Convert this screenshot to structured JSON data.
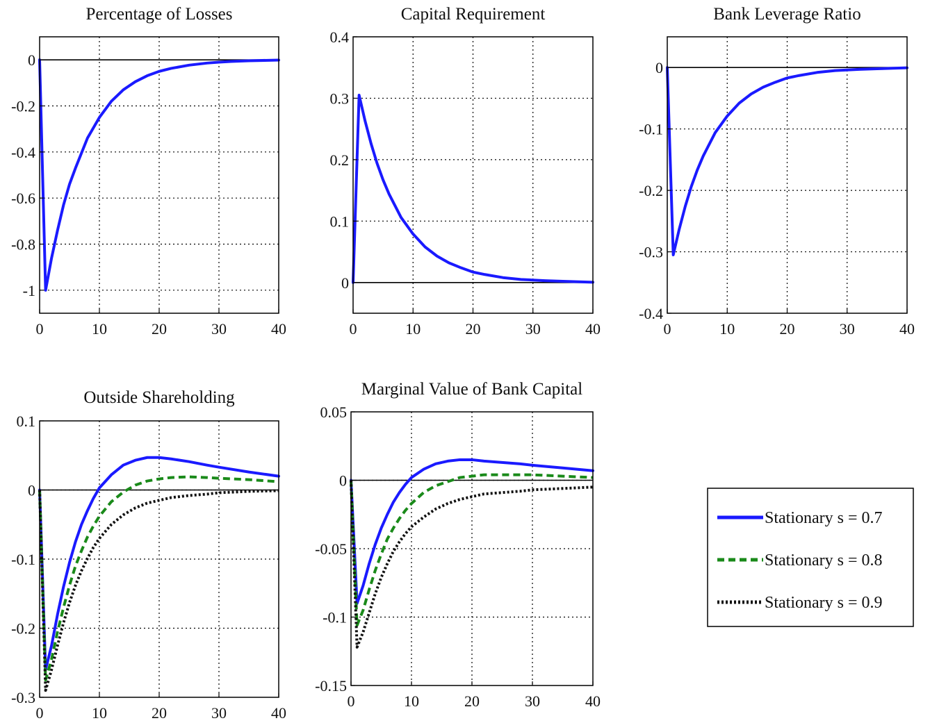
{
  "series_styles": [
    {
      "name": "Stationary s = 0.7",
      "color": "#1a1aff",
      "dash": "none",
      "width": 4
    },
    {
      "name": "Stationary s = 0.8",
      "color": "#1a8a1a",
      "dash": "10 6",
      "width": 4
    },
    {
      "name": "Stationary s = 0.9",
      "color": "#111111",
      "dash": "3 3",
      "width": 4
    }
  ],
  "legend": {
    "placement": "bottom-right",
    "entries": [
      "Stationary s = 0.7",
      "Stationary s = 0.8",
      "Stationary s = 0.9"
    ]
  },
  "chart_data": [
    {
      "type": "line",
      "title": "Percentage of Losses",
      "xlim": [
        0,
        40
      ],
      "ylim": [
        -1.1,
        0.1
      ],
      "xticks": [
        0,
        10,
        20,
        30,
        40
      ],
      "yticks": [
        0,
        -0.2,
        -0.4,
        -0.6,
        -0.8,
        -1
      ],
      "ytick_labels": [
        "0",
        "-0.2",
        "-0.4",
        "-0.6",
        "-0.8",
        "-1"
      ],
      "grid": true,
      "x": [
        0,
        1,
        2,
        3,
        4,
        5,
        6,
        8,
        10,
        12,
        14,
        16,
        18,
        20,
        22,
        25,
        28,
        30,
        32,
        35,
        40
      ],
      "series": [
        {
          "values": [
            0,
            -1.0,
            -0.86,
            -0.74,
            -0.63,
            -0.54,
            -0.47,
            -0.34,
            -0.25,
            -0.18,
            -0.13,
            -0.095,
            -0.069,
            -0.05,
            -0.037,
            -0.023,
            -0.014,
            -0.01,
            -0.007,
            -0.004,
            -0.001
          ]
        }
      ]
    },
    {
      "type": "line",
      "title": "Capital Requirement",
      "xlim": [
        0,
        40
      ],
      "ylim": [
        -0.05,
        0.4
      ],
      "xticks": [
        0,
        10,
        20,
        30,
        40
      ],
      "yticks": [
        0,
        0.1,
        0.2,
        0.3,
        0.4
      ],
      "ytick_labels": [
        "0",
        "0.1",
        "0.2",
        "0.3",
        "0.4"
      ],
      "grid": true,
      "x": [
        0,
        1,
        2,
        3,
        4,
        5,
        6,
        8,
        10,
        12,
        14,
        16,
        18,
        20,
        22,
        25,
        28,
        30,
        32,
        35,
        40
      ],
      "series": [
        {
          "values": [
            0,
            0.305,
            0.263,
            0.226,
            0.194,
            0.167,
            0.144,
            0.106,
            0.079,
            0.058,
            0.043,
            0.032,
            0.024,
            0.017,
            0.013,
            0.008,
            0.005,
            0.004,
            0.003,
            0.002,
            0.0005
          ]
        }
      ]
    },
    {
      "type": "line",
      "title": "Bank Leverage Ratio",
      "xlim": [
        0,
        40
      ],
      "ylim": [
        -0.4,
        0.05
      ],
      "xticks": [
        0,
        10,
        20,
        30,
        40
      ],
      "yticks": [
        0,
        -0.1,
        -0.2,
        -0.3,
        -0.4
      ],
      "ytick_labels": [
        "0",
        "-0.1",
        "-0.2",
        "-0.3",
        "-0.4"
      ],
      "grid": true,
      "x": [
        0,
        1,
        2,
        3,
        4,
        5,
        6,
        8,
        10,
        12,
        14,
        16,
        18,
        20,
        22,
        25,
        28,
        30,
        32,
        35,
        40
      ],
      "series": [
        {
          "values": [
            0,
            -0.305,
            -0.263,
            -0.226,
            -0.194,
            -0.167,
            -0.144,
            -0.106,
            -0.079,
            -0.058,
            -0.043,
            -0.032,
            -0.024,
            -0.017,
            -0.013,
            -0.008,
            -0.005,
            -0.004,
            -0.003,
            -0.002,
            -0.0005
          ]
        }
      ]
    },
    {
      "type": "line",
      "title": "Outside Shareholding",
      "xlim": [
        0,
        40
      ],
      "ylim": [
        -0.3,
        0.1
      ],
      "xticks": [
        0,
        10,
        20,
        30,
        40
      ],
      "yticks": [
        0.1,
        0,
        -0.1,
        -0.2,
        -0.3
      ],
      "ytick_labels": [
        "0.1",
        "0",
        "-0.1",
        "-0.2",
        "-0.3"
      ],
      "grid": true,
      "x": [
        0,
        1,
        2,
        3,
        4,
        5,
        6,
        7,
        8,
        9,
        10,
        12,
        14,
        16,
        18,
        20,
        22,
        25,
        28,
        30,
        35,
        40
      ],
      "series": [
        {
          "values": [
            0,
            -0.26,
            -0.225,
            -0.18,
            -0.14,
            -0.105,
            -0.075,
            -0.05,
            -0.03,
            -0.012,
            0.003,
            0.022,
            0.036,
            0.043,
            0.047,
            0.047,
            0.045,
            0.041,
            0.036,
            0.033,
            0.026,
            0.02
          ]
        },
        {
          "values": [
            0,
            -0.275,
            -0.245,
            -0.205,
            -0.17,
            -0.138,
            -0.11,
            -0.088,
            -0.068,
            -0.052,
            -0.038,
            -0.017,
            -0.003,
            0.007,
            0.013,
            0.016,
            0.018,
            0.019,
            0.018,
            0.017,
            0.015,
            0.012
          ]
        },
        {
          "values": [
            0,
            -0.29,
            -0.26,
            -0.225,
            -0.192,
            -0.163,
            -0.138,
            -0.117,
            -0.099,
            -0.083,
            -0.07,
            -0.05,
            -0.036,
            -0.026,
            -0.019,
            -0.015,
            -0.011,
            -0.008,
            -0.006,
            -0.004,
            -0.002,
            -0.001
          ]
        }
      ]
    },
    {
      "type": "line",
      "title": "Marginal Value of Bank Capital",
      "xlim": [
        0,
        40
      ],
      "ylim": [
        -0.15,
        0.05
      ],
      "xticks": [
        0,
        10,
        20,
        30,
        40
      ],
      "yticks": [
        0.05,
        0,
        -0.05,
        -0.1,
        -0.15
      ],
      "ytick_labels": [
        "0.05",
        "0",
        "-0.05",
        "-0.1",
        "-0.15"
      ],
      "grid": true,
      "x": [
        0,
        1,
        2,
        3,
        4,
        5,
        6,
        7,
        8,
        9,
        10,
        12,
        14,
        16,
        18,
        20,
        22,
        25,
        28,
        30,
        35,
        40
      ],
      "series": [
        {
          "values": [
            0,
            -0.09,
            -0.077,
            -0.061,
            -0.047,
            -0.035,
            -0.025,
            -0.016,
            -0.009,
            -0.003,
            0.002,
            0.008,
            0.012,
            0.014,
            0.015,
            0.015,
            0.014,
            0.013,
            0.012,
            0.011,
            0.009,
            0.007
          ]
        },
        {
          "values": [
            0,
            -0.106,
            -0.095,
            -0.08,
            -0.066,
            -0.054,
            -0.043,
            -0.035,
            -0.028,
            -0.022,
            -0.017,
            -0.009,
            -0.004,
            -0.001,
            0.002,
            0.003,
            0.004,
            0.004,
            0.004,
            0.004,
            0.003,
            0.002
          ]
        },
        {
          "values": [
            0,
            -0.122,
            -0.111,
            -0.097,
            -0.083,
            -0.071,
            -0.061,
            -0.052,
            -0.045,
            -0.039,
            -0.034,
            -0.027,
            -0.021,
            -0.017,
            -0.014,
            -0.012,
            -0.01,
            -0.009,
            -0.008,
            -0.007,
            -0.006,
            -0.005
          ]
        }
      ]
    }
  ]
}
